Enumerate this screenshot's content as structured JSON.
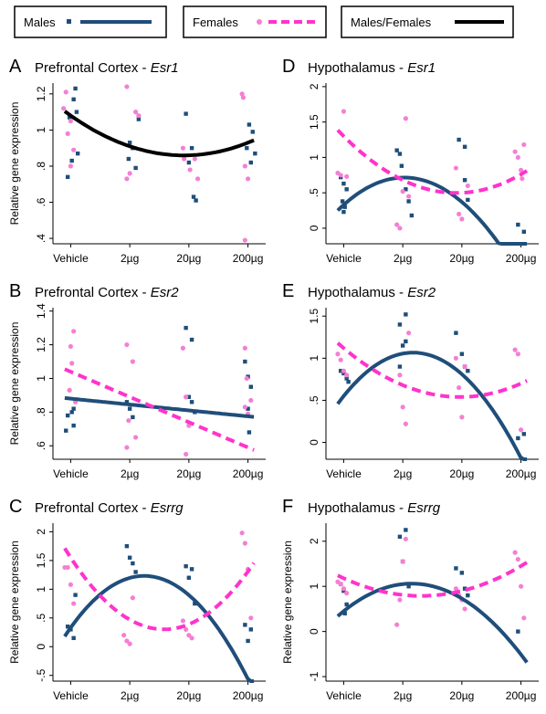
{
  "legend": {
    "males": "Males",
    "females": "Females",
    "combined": "Males/Females"
  },
  "colors": {
    "males": "#1f4e79",
    "females": "#ff33cc",
    "females_points": "#f47fd4",
    "combined": "#000000"
  },
  "chart_data": [
    {
      "type": "scatter",
      "letter": "A",
      "title_prefix": "Prefrontal Cortex - ",
      "gene": "Esr1",
      "ylabel": "Relative gene expression",
      "categories": [
        "Vehicle",
        "2µg",
        "20µg",
        "200µg"
      ],
      "yticks": [
        0.4,
        0.6,
        0.8,
        1.0,
        1.2
      ],
      "ytick_labels": [
        ".4",
        ".6",
        ".8",
        "1",
        "1.2"
      ],
      "ylim": [
        0.37,
        1.26
      ],
      "series": [
        {
          "key": "males",
          "points": [
            [
              0.08,
              1.23
            ],
            [
              0.05,
              1.17
            ],
            [
              0.1,
              1.1
            ],
            [
              -0.02,
              1.07
            ],
            [
              0.12,
              0.87
            ],
            [
              0.02,
              0.83
            ],
            [
              -0.05,
              0.74
            ],
            [
              1.0,
              0.93
            ],
            [
              1.05,
              0.9
            ],
            [
              0.98,
              0.84
            ],
            [
              1.1,
              0.79
            ],
            [
              1.15,
              1.06
            ],
            [
              1.95,
              1.09
            ],
            [
              2.05,
              0.9
            ],
            [
              2.0,
              0.82
            ],
            [
              2.08,
              0.63
            ],
            [
              2.12,
              0.61
            ],
            [
              3.02,
              1.03
            ],
            [
              3.08,
              0.99
            ],
            [
              2.98,
              0.9
            ],
            [
              3.12,
              0.87
            ],
            [
              3.05,
              0.82
            ]
          ]
        },
        {
          "key": "females",
          "points": [
            [
              -0.08,
              1.21
            ],
            [
              -0.12,
              1.12
            ],
            [
              0.0,
              1.05
            ],
            [
              -0.05,
              0.98
            ],
            [
              0.05,
              0.89
            ],
            [
              0.0,
              0.8
            ],
            [
              0.95,
              1.24
            ],
            [
              1.1,
              1.1
            ],
            [
              1.15,
              1.08
            ],
            [
              1.0,
              0.76
            ],
            [
              0.95,
              0.73
            ],
            [
              1.9,
              0.9
            ],
            [
              1.92,
              0.84
            ],
            [
              2.1,
              0.84
            ],
            [
              2.02,
              0.78
            ],
            [
              2.15,
              0.73
            ],
            [
              2.9,
              1.2
            ],
            [
              2.92,
              1.18
            ],
            [
              2.95,
              0.8
            ],
            [
              3.0,
              0.73
            ],
            [
              2.95,
              0.39
            ]
          ]
        }
      ],
      "fits": [
        {
          "key": "combined",
          "coef": [
            1.08,
            -0.23,
            0.06
          ]
        }
      ]
    },
    {
      "type": "scatter",
      "letter": "D",
      "title_prefix": "Hypothalamus - ",
      "gene": "Esr1",
      "ylabel": "",
      "categories": [
        "Vehicle",
        "2µg",
        "20µg",
        "200µg"
      ],
      "yticks": [
        0,
        0.5,
        1,
        1.5,
        2
      ],
      "ytick_labels": [
        "0",
        ".5",
        "1",
        "1.5",
        "2"
      ],
      "ylim": [
        -0.22,
        2.05
      ],
      "series": [
        {
          "key": "males",
          "points": [
            [
              -0.05,
              0.72
            ],
            [
              0.0,
              0.63
            ],
            [
              0.05,
              0.55
            ],
            [
              -0.02,
              0.38
            ],
            [
              0.02,
              0.3
            ],
            [
              0.0,
              0.23
            ],
            [
              0.9,
              1.1
            ],
            [
              0.95,
              1.05
            ],
            [
              0.98,
              0.88
            ],
            [
              1.05,
              0.55
            ],
            [
              1.1,
              0.38
            ],
            [
              1.15,
              0.18
            ],
            [
              1.95,
              1.25
            ],
            [
              2.05,
              1.15
            ],
            [
              2.05,
              0.68
            ],
            [
              2.1,
              0.4
            ],
            [
              2.95,
              0.05
            ],
            [
              3.05,
              -0.05
            ]
          ]
        },
        {
          "key": "females",
          "points": [
            [
              -0.1,
              0.78
            ],
            [
              -0.05,
              0.75
            ],
            [
              0.0,
              1.65
            ],
            [
              0.05,
              0.73
            ],
            [
              0.9,
              0.05
            ],
            [
              0.95,
              0.0
            ],
            [
              1.0,
              0.52
            ],
            [
              1.05,
              1.55
            ],
            [
              1.1,
              0.45
            ],
            [
              1.9,
              0.85
            ],
            [
              1.95,
              0.2
            ],
            [
              2.0,
              0.13
            ],
            [
              2.1,
              0.6
            ],
            [
              2.9,
              1.08
            ],
            [
              2.95,
              1.0
            ],
            [
              3.0,
              0.82
            ],
            [
              3.05,
              1.18
            ],
            [
              3.02,
              0.7
            ]
          ]
        }
      ],
      "fits": [
        {
          "key": "males",
          "coef": [
            0.33,
            0.75,
            -0.365
          ]
        },
        {
          "key": "females",
          "coef": [
            1.3,
            -0.84,
            0.22
          ]
        }
      ]
    },
    {
      "type": "scatter",
      "letter": "B",
      "title_prefix": "Prefrontal Cortex - ",
      "gene": "Esr2",
      "ylabel": "Relative gene expression",
      "categories": [
        "Vehicle",
        "2µg",
        "20µg",
        "200µg"
      ],
      "yticks": [
        0.6,
        0.8,
        1.0,
        1.2,
        1.4
      ],
      "ytick_labels": [
        ".6",
        ".8",
        "1",
        "1.2",
        "1.4"
      ],
      "ylim": [
        0.52,
        1.42
      ],
      "series": [
        {
          "key": "males",
          "points": [
            [
              0.02,
              0.8
            ],
            [
              -0.05,
              0.78
            ],
            [
              0.05,
              0.72
            ],
            [
              -0.08,
              0.69
            ],
            [
              0.05,
              0.82
            ],
            [
              0.95,
              0.86
            ],
            [
              1.0,
              0.82
            ],
            [
              1.05,
              0.77
            ],
            [
              1.95,
              1.3
            ],
            [
              2.05,
              1.23
            ],
            [
              2.0,
              0.89
            ],
            [
              2.05,
              0.86
            ],
            [
              2.1,
              0.8
            ],
            [
              2.95,
              1.1
            ],
            [
              3.0,
              1.01
            ],
            [
              3.05,
              0.95
            ],
            [
              3.0,
              0.82
            ],
            [
              3.02,
              0.68
            ]
          ]
        },
        {
          "key": "females",
          "points": [
            [
              0.05,
              1.28
            ],
            [
              0.0,
              1.19
            ],
            [
              0.02,
              1.09
            ],
            [
              -0.02,
              0.93
            ],
            [
              0.08,
              0.86
            ],
            [
              0.95,
              1.2
            ],
            [
              1.05,
              1.1
            ],
            [
              0.98,
              0.75
            ],
            [
              1.1,
              0.65
            ],
            [
              0.95,
              0.59
            ],
            [
              1.9,
              1.18
            ],
            [
              1.95,
              0.89
            ],
            [
              2.0,
              0.72
            ],
            [
              1.95,
              0.55
            ],
            [
              2.95,
              1.18
            ],
            [
              2.98,
              1.0
            ],
            [
              3.05,
              0.87
            ],
            [
              2.95,
              0.83
            ],
            [
              3.0,
              0.79
            ]
          ]
        }
      ],
      "fits": [
        {
          "key": "males",
          "coef": [
            0.88,
            -0.035,
            0.0
          ]
        },
        {
          "key": "females",
          "coef": [
            1.04,
            -0.15,
            0.0
          ]
        }
      ]
    },
    {
      "type": "scatter",
      "letter": "E",
      "title_prefix": "Hypothalamus - ",
      "gene": "Esr2",
      "ylabel": "",
      "categories": [
        "Vehicle",
        "2µg",
        "20µg",
        "200µg"
      ],
      "yticks": [
        0,
        0.5,
        1,
        1.5
      ],
      "ytick_labels": [
        "0",
        ".5",
        "1",
        "1.5"
      ],
      "ylim": [
        -0.2,
        1.6
      ],
      "series": [
        {
          "key": "males",
          "points": [
            [
              -0.05,
              0.85
            ],
            [
              0.0,
              0.82
            ],
            [
              0.05,
              0.76
            ],
            [
              0.08,
              0.72
            ],
            [
              0.95,
              1.4
            ],
            [
              1.05,
              1.52
            ],
            [
              1.05,
              1.2
            ],
            [
              1.0,
              1.15
            ],
            [
              0.95,
              0.9
            ],
            [
              1.9,
              1.3
            ],
            [
              2.0,
              1.05
            ],
            [
              2.05,
              0.9
            ],
            [
              2.1,
              0.85
            ],
            [
              2.95,
              0.05
            ],
            [
              3.05,
              0.1
            ]
          ]
        },
        {
          "key": "females",
          "points": [
            [
              -0.1,
              1.05
            ],
            [
              -0.05,
              0.98
            ],
            [
              0.0,
              0.85
            ],
            [
              0.05,
              0.8
            ],
            [
              0.95,
              0.8
            ],
            [
              1.0,
              0.42
            ],
            [
              1.05,
              0.22
            ],
            [
              1.1,
              1.3
            ],
            [
              1.9,
              1.0
            ],
            [
              1.95,
              0.65
            ],
            [
              2.0,
              0.3
            ],
            [
              2.05,
              0.9
            ],
            [
              2.9,
              1.1
            ],
            [
              2.95,
              1.05
            ],
            [
              3.0,
              0.15
            ]
          ]
        }
      ],
      "fits": [
        {
          "key": "males",
          "coef": [
            0.55,
            0.88,
            -0.375
          ]
        },
        {
          "key": "females",
          "coef": [
            1.12,
            -0.59,
            0.15
          ]
        }
      ]
    },
    {
      "type": "scatter",
      "letter": "C",
      "title_prefix": "Prefrontal Cortex - ",
      "gene": "Esrrg",
      "ylabel": "Relative gene expression",
      "categories": [
        "Vehicle",
        "2µg",
        "20µg",
        "200µg"
      ],
      "yticks": [
        -0.5,
        0,
        0.5,
        1,
        1.5,
        2
      ],
      "ytick_labels": [
        "-.5",
        "0",
        ".5",
        "1",
        "1.5",
        "2"
      ],
      "ylim": [
        -0.6,
        2.15
      ],
      "series": [
        {
          "key": "males",
          "points": [
            [
              -0.05,
              0.35
            ],
            [
              0.0,
              0.3
            ],
            [
              0.05,
              0.15
            ],
            [
              0.08,
              0.9
            ],
            [
              0.95,
              1.75
            ],
            [
              1.0,
              1.55
            ],
            [
              1.05,
              1.45
            ],
            [
              1.1,
              1.3
            ],
            [
              1.95,
              1.4
            ],
            [
              2.05,
              1.35
            ],
            [
              2.0,
              1.2
            ],
            [
              2.1,
              0.75
            ],
            [
              2.95,
              0.38
            ],
            [
              3.05,
              0.3
            ],
            [
              3.0,
              0.1
            ]
          ]
        },
        {
          "key": "females",
          "points": [
            [
              -0.1,
              1.38
            ],
            [
              -0.05,
              1.38
            ],
            [
              0.0,
              1.08
            ],
            [
              0.05,
              0.75
            ],
            [
              0.9,
              0.2
            ],
            [
              0.95,
              0.1
            ],
            [
              1.0,
              0.05
            ],
            [
              1.05,
              0.85
            ],
            [
              1.9,
              0.45
            ],
            [
              1.95,
              0.3
            ],
            [
              2.0,
              0.2
            ],
            [
              2.05,
              0.15
            ],
            [
              2.9,
              1.98
            ],
            [
              2.95,
              1.8
            ],
            [
              3.0,
              1.35
            ],
            [
              3.05,
              0.5
            ]
          ]
        }
      ],
      "fits": [
        {
          "key": "males",
          "coef": [
            0.33,
            1.45,
            -0.583
          ]
        },
        {
          "key": "females",
          "coef": [
            1.55,
            -1.58,
            0.5
          ]
        }
      ]
    },
    {
      "type": "scatter",
      "letter": "F",
      "title_prefix": "Hypothalamus - ",
      "gene": "Esrrg",
      "ylabel": "Relative gene expression",
      "categories": [
        "Vehicle",
        "2µg",
        "20µg",
        "200µg"
      ],
      "yticks": [
        -1,
        0,
        1,
        2
      ],
      "ytick_labels": [
        "-1",
        "0",
        "1",
        "2"
      ],
      "ylim": [
        -1.1,
        2.4
      ],
      "series": [
        {
          "key": "males",
          "points": [
            [
              -0.05,
              1.05
            ],
            [
              0.0,
              0.9
            ],
            [
              0.05,
              0.6
            ],
            [
              0.02,
              0.4
            ],
            [
              0.95,
              2.1
            ],
            [
              1.05,
              2.25
            ],
            [
              1.0,
              1.55
            ],
            [
              1.1,
              1.0
            ],
            [
              1.9,
              1.4
            ],
            [
              2.0,
              1.3
            ],
            [
              2.05,
              0.95
            ],
            [
              2.1,
              0.8
            ],
            [
              2.95,
              0.0
            ]
          ]
        },
        {
          "key": "females",
          "points": [
            [
              -0.1,
              1.1
            ],
            [
              -0.05,
              1.05
            ],
            [
              0.0,
              0.95
            ],
            [
              0.05,
              0.85
            ],
            [
              0.9,
              0.15
            ],
            [
              0.95,
              0.7
            ],
            [
              1.0,
              1.55
            ],
            [
              1.05,
              2.05
            ],
            [
              1.9,
              0.95
            ],
            [
              1.95,
              0.8
            ],
            [
              2.0,
              0.7
            ],
            [
              2.05,
              0.5
            ],
            [
              2.9,
              1.75
            ],
            [
              2.95,
              1.6
            ],
            [
              3.0,
              1.0
            ],
            [
              3.05,
              0.3
            ]
          ]
        }
      ],
      "fits": [
        {
          "key": "males",
          "coef": [
            0.45,
            1.06,
            -0.46
          ]
        },
        {
          "key": "females",
          "coef": [
            1.18,
            -0.6,
            0.23
          ]
        }
      ]
    }
  ]
}
